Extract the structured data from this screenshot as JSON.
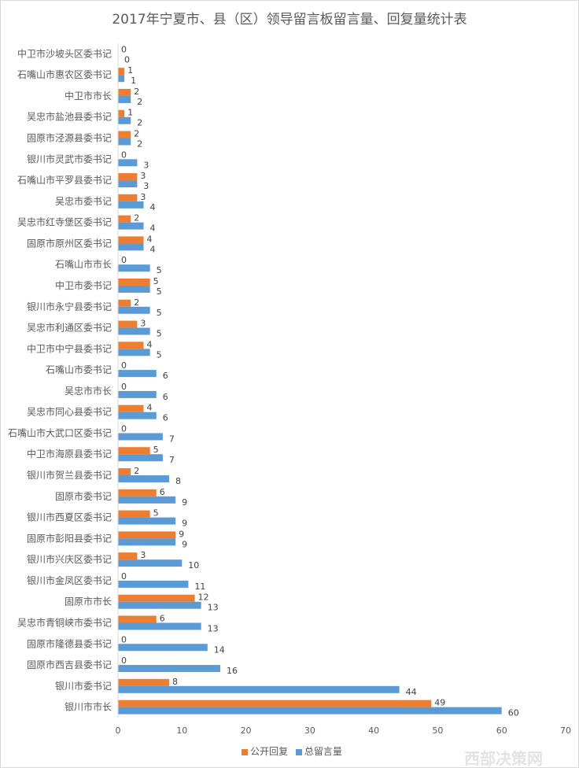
{
  "chart_data": {
    "type": "bar",
    "orientation": "horizontal",
    "title": "2017年宁夏市、县（区）领导留言板留言量、回复量统计表",
    "categories": [
      "中卫市沙坡头区委书记",
      "石嘴山市惠农区委书记",
      "中卫市市长",
      "吴忠市盐池县委书记",
      "固原市泾源县委书记",
      "银川市灵武市委书记",
      "石嘴山市平罗县委书记",
      "吴忠市委书记",
      "吴忠市红寺堡区委书记",
      "固原市原州区委书记",
      "石嘴山市市长",
      "中卫市委书记",
      "银川市永宁县委书记",
      "吴忠市利通区委书记",
      "中卫市中宁县委书记",
      "石嘴山市委书记",
      "吴忠市市长",
      "吴忠市同心县委书记",
      "石嘴山市大武口区委书记",
      "中卫市海原县委书记",
      "银川市贺兰县委书记",
      "固原市委书记",
      "银川市西夏区委书记",
      "固原市彭阳县委书记",
      "银川市兴庆区委书记",
      "银川市金凤区委书记",
      "固原市市长",
      "吴忠市青铜峡市委书记",
      "固原市隆德县委书记",
      "固原市西吉县委书记",
      "银川市委书记",
      "银川市市长"
    ],
    "series": [
      {
        "name": "公开回复",
        "color": "#ed7d31",
        "values": [
          0,
          1,
          2,
          1,
          2,
          0,
          3,
          3,
          2,
          4,
          0,
          5,
          2,
          3,
          4,
          0,
          0,
          4,
          0,
          5,
          2,
          6,
          5,
          9,
          3,
          0,
          12,
          6,
          0,
          0,
          8,
          49
        ]
      },
      {
        "name": "总留言量",
        "color": "#5b9bd5",
        "values": [
          0,
          1,
          2,
          2,
          2,
          3,
          3,
          4,
          4,
          4,
          5,
          5,
          5,
          5,
          5,
          6,
          6,
          6,
          7,
          7,
          8,
          9,
          9,
          9,
          10,
          11,
          13,
          13,
          14,
          16,
          44,
          60
        ]
      }
    ],
    "xlim": [
      0,
      70
    ],
    "xticks": [
      0,
      10,
      20,
      30,
      40,
      50,
      60,
      70
    ],
    "grid": false,
    "legend_position": "bottom",
    "data_labels": true
  },
  "watermark": "西部决策网"
}
